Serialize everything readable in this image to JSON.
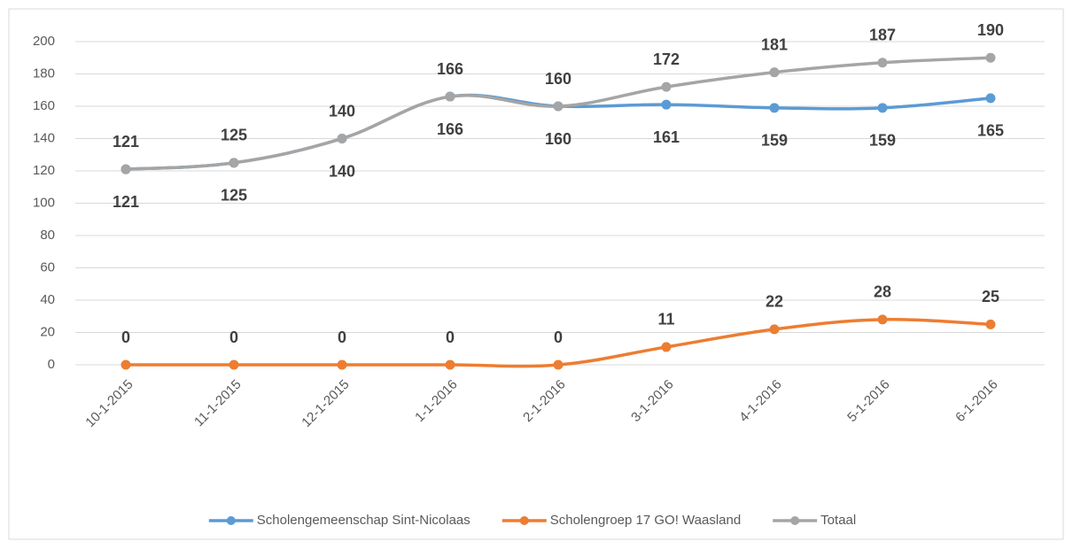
{
  "chart_data": {
    "type": "line",
    "categories": [
      "10-1-2015",
      "11-1-2015",
      "12-1-2015",
      "1-1-2016",
      "2-1-2016",
      "3-1-2016",
      "4-1-2016",
      "5-1-2016",
      "6-1-2016"
    ],
    "series": [
      {
        "name": "Scholengemeenschap Sint-Nicolaas",
        "color": "#5b9bd5",
        "values": [
          121,
          125,
          140,
          166,
          160,
          161,
          159,
          159,
          165
        ]
      },
      {
        "name": "Scholengroep 17 GO! Waasland",
        "color": "#ed7d31",
        "values": [
          0,
          0,
          0,
          0,
          0,
          11,
          22,
          28,
          25
        ]
      },
      {
        "name": "Totaal",
        "color": "#a5a5a5",
        "values": [
          121,
          125,
          140,
          166,
          160,
          172,
          181,
          187,
          190
        ]
      }
    ],
    "ylim": [
      0,
      200
    ],
    "yticks": [
      0,
      20,
      40,
      60,
      80,
      100,
      120,
      140,
      160,
      180,
      200
    ],
    "grid": true,
    "legend": "bottom"
  }
}
